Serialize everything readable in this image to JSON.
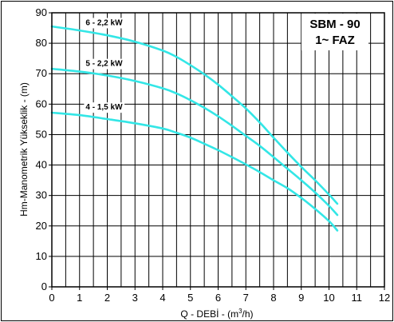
{
  "chart_data": {
    "type": "line",
    "title_lines": [
      "SBM - 90",
      "1~ FAZ"
    ],
    "xlabel_main": "Q - DEBİ - (m",
    "xlabel_sup": "3",
    "xlabel_tail": "/h)",
    "ylabel": "Hm-Manometrik Yükseklik - (m)",
    "xlim": [
      0,
      12
    ],
    "ylim": [
      0,
      90
    ],
    "xticks": [
      0,
      1,
      2,
      3,
      4,
      5,
      6,
      7,
      8,
      9,
      10,
      11,
      12
    ],
    "yticks": [
      0,
      10,
      20,
      30,
      40,
      50,
      60,
      70,
      80,
      90
    ],
    "minor_x_step": 0.5,
    "grid": true,
    "line_color": "#33e6e6",
    "series": [
      {
        "name": "6 - 2,2 kW",
        "x": [
          0,
          1,
          2,
          3,
          4,
          4.5,
          5,
          5.5,
          6,
          6.5,
          7,
          7.5,
          8,
          8.5,
          9,
          9.5,
          10,
          10.3
        ],
        "y": [
          85.5,
          84.2,
          82.6,
          80.5,
          77.6,
          75.5,
          72.8,
          69.8,
          66.4,
          62.6,
          58.6,
          54.0,
          49.0,
          44.1,
          39.4,
          35.0,
          30.3,
          27.3
        ]
      },
      {
        "name": "5 - 2,2 kW",
        "x": [
          0,
          1,
          2,
          3,
          4,
          4.5,
          5,
          5.5,
          6,
          6.5,
          7,
          7.5,
          8,
          8.5,
          9,
          9.5,
          10,
          10.3
        ],
        "y": [
          71.6,
          70.7,
          69.4,
          67.6,
          65.2,
          63.5,
          61.3,
          58.8,
          56.0,
          52.9,
          49.6,
          46.3,
          42.6,
          38.8,
          35.0,
          31.0,
          26.6,
          23.6
        ]
      },
      {
        "name": "4 - 1,5 kW",
        "x": [
          0,
          1,
          2,
          3,
          4,
          4.5,
          5,
          5.5,
          6,
          6.5,
          7,
          7.5,
          8,
          8.5,
          9,
          9.5,
          10,
          10.3
        ],
        "y": [
          57.2,
          56.4,
          55.1,
          53.7,
          52.0,
          50.6,
          49.0,
          47.0,
          44.9,
          42.6,
          40.2,
          37.7,
          35.0,
          32.4,
          29.2,
          25.6,
          21.6,
          18.5
        ]
      }
    ]
  }
}
